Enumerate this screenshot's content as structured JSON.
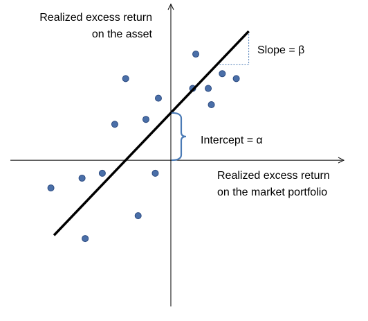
{
  "chart_data": {
    "type": "scatter",
    "title": "",
    "ylabel": [
      "Realized excess return",
      "on the asset"
    ],
    "xlabel": [
      "Realized excess return",
      "on the market portfolio"
    ],
    "xlim": [
      -10.3,
      11.1
    ],
    "ylim": [
      -8.96,
      9.56
    ],
    "grid": false,
    "points": [
      {
        "x": -7.7,
        "y": -1.7
      },
      {
        "x": -5.7,
        "y": -1.1
      },
      {
        "x": -4.4,
        "y": -0.8
      },
      {
        "x": -3.6,
        "y": 2.2
      },
      {
        "x": -5.5,
        "y": -4.8
      },
      {
        "x": -2.9,
        "y": 5.0
      },
      {
        "x": -1.6,
        "y": 2.5
      },
      {
        "x": -2.1,
        "y": -3.4
      },
      {
        "x": -1.0,
        "y": -0.8
      },
      {
        "x": -0.8,
        "y": 3.8
      },
      {
        "x": 1.6,
        "y": 6.5
      },
      {
        "x": 1.4,
        "y": 4.4
      },
      {
        "x": 2.4,
        "y": 4.4
      },
      {
        "x": 2.6,
        "y": 3.4
      },
      {
        "x": 3.3,
        "y": 5.3
      },
      {
        "x": 4.2,
        "y": 5.0
      }
    ],
    "fit_line": {
      "alpha": 2.9,
      "beta": 1.0,
      "x_range": [
        -7.5,
        5.0
      ]
    },
    "annotations": {
      "slope_label": "Slope = β",
      "intercept_label": "Intercept = α"
    },
    "colors": {
      "point_fill": "#4a6fa8",
      "point_stroke": "#2b4a80",
      "line": "#000000",
      "axis": "#000000",
      "brace": "#4a7ab5",
      "slope_guide": "#4a7ab5"
    }
  }
}
